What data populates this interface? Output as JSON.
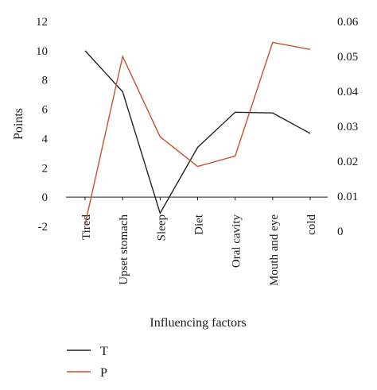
{
  "chart_data": {
    "type": "line",
    "xlabel": "Influencing factors",
    "ylabel": "Points",
    "categories": [
      "Tired",
      "Upset stomach",
      "Sleep",
      "Diet",
      "Oral cavity",
      "Mouth and eye",
      "cold"
    ],
    "y_left": {
      "range": [
        -2,
        12
      ],
      "ticks": [
        "-2",
        "0",
        "2",
        "4",
        "6",
        "8",
        "10",
        "12"
      ]
    },
    "y_right": {
      "range": [
        0,
        0.06
      ],
      "ticks": [
        "0",
        "0.01",
        "0.02",
        "0.03",
        "0.04",
        "0.05",
        "0.06"
      ]
    },
    "series": [
      {
        "name": "T",
        "axis": "left",
        "color": "#222222",
        "values": [
          10.0,
          7.2,
          -1.1,
          3.4,
          5.8,
          5.75,
          4.35
        ]
      },
      {
        "name": "P",
        "axis": "right",
        "color": "#c8502d",
        "values": [
          0.002,
          0.05,
          0.027,
          0.0185,
          0.0215,
          0.054,
          0.052
        ]
      }
    ],
    "grid": false,
    "legend": "bottom-left"
  }
}
